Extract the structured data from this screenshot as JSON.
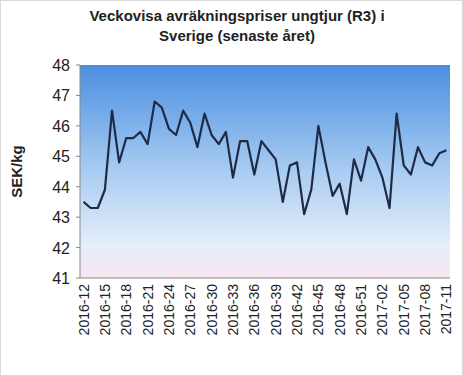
{
  "chart_data": {
    "type": "line",
    "title": "Veckovisa avräkningspriser ungtjur (R3) i Sverige (senaste året)",
    "y_label": "SEK/kg",
    "categories": [
      "2016-12",
      null,
      null,
      "2016-15",
      null,
      null,
      "2016-18",
      null,
      null,
      "2016-21",
      null,
      null,
      "2016-24",
      null,
      null,
      "2016-27",
      null,
      null,
      "2016-30",
      null,
      null,
      "2016-33",
      null,
      null,
      "2016-36",
      null,
      null,
      "2016-39",
      null,
      null,
      "2016-42",
      null,
      null,
      "2016-45",
      null,
      null,
      "2016-48",
      null,
      null,
      "2016-51",
      null,
      null,
      "2017-02",
      null,
      null,
      "2017-05",
      null,
      null,
      "2017-08",
      null,
      null,
      "2017-11"
    ],
    "series": [
      {
        "name": "Ungtjur (R3)",
        "color": "#1f2a44",
        "values": [
          43.5,
          43.3,
          43.3,
          43.9,
          46.5,
          44.8,
          45.6,
          45.6,
          45.8,
          45.4,
          46.8,
          46.6,
          45.9,
          45.7,
          46.5,
          46.1,
          45.3,
          46.4,
          45.7,
          45.4,
          45.8,
          44.3,
          45.5,
          45.5,
          44.4,
          45.5,
          45.2,
          44.9,
          43.5,
          44.7,
          44.8,
          43.1,
          43.9,
          46.0,
          44.8,
          43.7,
          44.1,
          43.1,
          44.9,
          44.2,
          45.3,
          44.9,
          44.3,
          43.3,
          46.4,
          44.7,
          44.4,
          45.3,
          44.8,
          44.7,
          45.1,
          45.2
        ]
      }
    ],
    "ylim": [
      41,
      48
    ],
    "yticks": [
      41,
      42,
      43,
      44,
      45,
      46,
      47,
      48
    ],
    "grid": false
  }
}
